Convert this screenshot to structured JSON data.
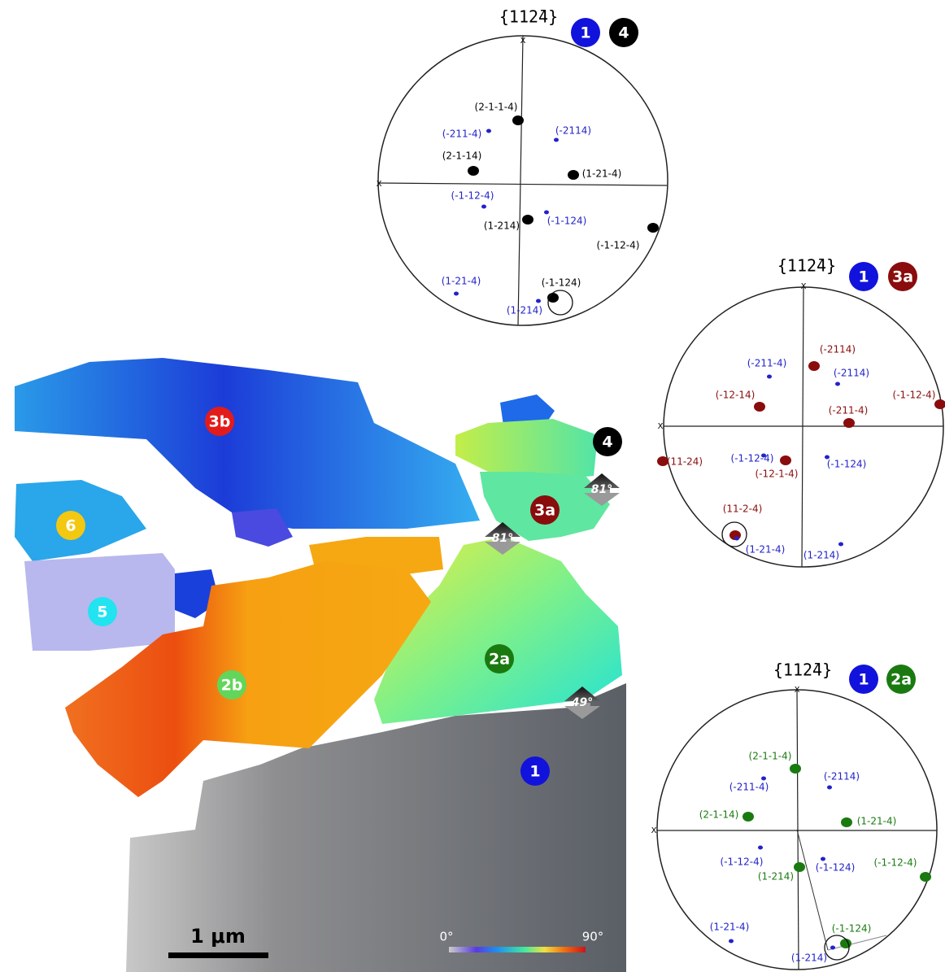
{
  "pole_figures": [
    {
      "title": "{112̄4}",
      "axis_labels": [
        "X",
        "X"
      ],
      "badges": [
        {
          "text": "1",
          "color": "#1212dd"
        },
        {
          "text": "4",
          "color": "#000000"
        }
      ],
      "labels": [
        {
          "text": "(2-1-1-4)",
          "color": "#000000"
        },
        {
          "text": "(-211-4)",
          "color": "#2222cc"
        },
        {
          "text": "(-2114)",
          "color": "#2222cc"
        },
        {
          "text": "(2-1-14)",
          "color": "#000000"
        },
        {
          "text": "(1-21-4)",
          "color": "#000000"
        },
        {
          "text": "(-1-12-4)",
          "color": "#2222cc"
        },
        {
          "text": "(-1-124)",
          "color": "#2222cc"
        },
        {
          "text": "(1-214)",
          "color": "#000000"
        },
        {
          "text": "(-1-12-4)",
          "color": "#000000"
        },
        {
          "text": "(1-21-4)",
          "color": "#2222cc"
        },
        {
          "text": "(-1-124)",
          "color": "#000000"
        },
        {
          "text": "(1-214)",
          "color": "#2222cc"
        }
      ]
    },
    {
      "title": "{112̄4}",
      "axis_labels": [
        "X",
        "X"
      ],
      "badges": [
        {
          "text": "1",
          "color": "#1212dd"
        },
        {
          "text": "3a",
          "color": "#8a0c0c"
        }
      ],
      "labels": [
        {
          "text": "(-211-4)",
          "color": "#2222cc"
        },
        {
          "text": "(-2114)",
          "color": "#8a0c0c"
        },
        {
          "text": "(-2114)",
          "color": "#2222cc"
        },
        {
          "text": "(-12-14)",
          "color": "#8a0c0c"
        },
        {
          "text": "(-211-4)",
          "color": "#8a0c0c"
        },
        {
          "text": "(-1-12-4)",
          "color": "#8a0c0c"
        },
        {
          "text": "(11-24)",
          "color": "#8a0c0c"
        },
        {
          "text": "(-1-12-4)",
          "color": "#2222cc"
        },
        {
          "text": "(-12-1-4)",
          "color": "#8a0c0c"
        },
        {
          "text": "(-1-124)",
          "color": "#2222cc"
        },
        {
          "text": "(11-2-4)",
          "color": "#8a0c0c"
        },
        {
          "text": "(1-21-4)",
          "color": "#2222cc"
        },
        {
          "text": "(1-214)",
          "color": "#2222cc"
        }
      ]
    },
    {
      "title": "{112̄4}",
      "axis_labels": [
        "X",
        "X"
      ],
      "badges": [
        {
          "text": "1",
          "color": "#1212dd"
        },
        {
          "text": "2a",
          "color": "#1a7a10"
        }
      ],
      "labels": [
        {
          "text": "(2-1-1-4)",
          "color": "#1a7a10"
        },
        {
          "text": "(-2114)",
          "color": "#2222cc"
        },
        {
          "text": "(-211-4)",
          "color": "#2222cc"
        },
        {
          "text": "(2-1-14)",
          "color": "#1a7a10"
        },
        {
          "text": "(1-21-4)",
          "color": "#1a7a10"
        },
        {
          "text": "(-1-12-4)",
          "color": "#2222cc"
        },
        {
          "text": "(-1-124)",
          "color": "#2222cc"
        },
        {
          "text": "(-1-12-4)",
          "color": "#1a7a10"
        },
        {
          "text": "(1-214)",
          "color": "#1a7a10"
        },
        {
          "text": "(1-21-4)",
          "color": "#2222cc"
        },
        {
          "text": "(-1-124)",
          "color": "#1a7a10"
        },
        {
          "text": "(1-214)",
          "color": "#2222cc"
        }
      ]
    }
  ],
  "map": {
    "grains": [
      {
        "text": "3b",
        "color": "#e41b1b",
        "text_color": "#ffffff"
      },
      {
        "text": "4",
        "color": "#000000",
        "text_color": "#ffffff"
      },
      {
        "text": "6",
        "color": "#f2c811",
        "text_color": "#222222"
      },
      {
        "text": "3a",
        "color": "#8a0c0c",
        "text_color": "#ffffff"
      },
      {
        "text": "5",
        "color": "#22e3f0",
        "text_color": "#222222"
      },
      {
        "text": "2a",
        "color": "#1a7a10",
        "text_color": "#ffffff"
      },
      {
        "text": "2b",
        "color": "#62d65a",
        "text_color": "#ffffff"
      },
      {
        "text": "1",
        "color": "#1212dd",
        "text_color": "#ffffff"
      }
    ],
    "angles": [
      "81°",
      "81°",
      "49°"
    ],
    "scale_bar": "1 μm",
    "colorbar": {
      "min_label": "0°",
      "max_label": "90°"
    }
  }
}
